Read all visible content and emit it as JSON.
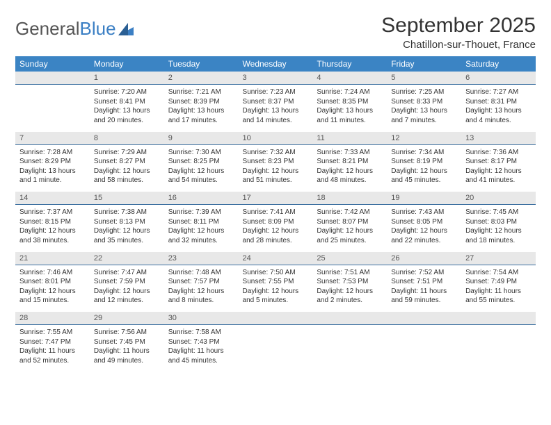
{
  "logo": {
    "text_a": "General",
    "text_b": "Blue"
  },
  "title": "September 2025",
  "location": "Chatillon-sur-Thouet, France",
  "colors": {
    "header_bg": "#3b84c4",
    "header_fg": "#ffffff",
    "daynum_bg": "#e8e8e8",
    "daynum_border": "#3b6fa0",
    "text": "#333333",
    "page_bg": "#ffffff"
  },
  "day_names": [
    "Sunday",
    "Monday",
    "Tuesday",
    "Wednesday",
    "Thursday",
    "Friday",
    "Saturday"
  ],
  "weeks": [
    {
      "nums": [
        "",
        "1",
        "2",
        "3",
        "4",
        "5",
        "6"
      ],
      "cells": [
        null,
        {
          "sunrise": "Sunrise: 7:20 AM",
          "sunset": "Sunset: 8:41 PM",
          "day1": "Daylight: 13 hours",
          "day2": "and 20 minutes."
        },
        {
          "sunrise": "Sunrise: 7:21 AM",
          "sunset": "Sunset: 8:39 PM",
          "day1": "Daylight: 13 hours",
          "day2": "and 17 minutes."
        },
        {
          "sunrise": "Sunrise: 7:23 AM",
          "sunset": "Sunset: 8:37 PM",
          "day1": "Daylight: 13 hours",
          "day2": "and 14 minutes."
        },
        {
          "sunrise": "Sunrise: 7:24 AM",
          "sunset": "Sunset: 8:35 PM",
          "day1": "Daylight: 13 hours",
          "day2": "and 11 minutes."
        },
        {
          "sunrise": "Sunrise: 7:25 AM",
          "sunset": "Sunset: 8:33 PM",
          "day1": "Daylight: 13 hours",
          "day2": "and 7 minutes."
        },
        {
          "sunrise": "Sunrise: 7:27 AM",
          "sunset": "Sunset: 8:31 PM",
          "day1": "Daylight: 13 hours",
          "day2": "and 4 minutes."
        }
      ]
    },
    {
      "nums": [
        "7",
        "8",
        "9",
        "10",
        "11",
        "12",
        "13"
      ],
      "cells": [
        {
          "sunrise": "Sunrise: 7:28 AM",
          "sunset": "Sunset: 8:29 PM",
          "day1": "Daylight: 13 hours",
          "day2": "and 1 minute."
        },
        {
          "sunrise": "Sunrise: 7:29 AM",
          "sunset": "Sunset: 8:27 PM",
          "day1": "Daylight: 12 hours",
          "day2": "and 58 minutes."
        },
        {
          "sunrise": "Sunrise: 7:30 AM",
          "sunset": "Sunset: 8:25 PM",
          "day1": "Daylight: 12 hours",
          "day2": "and 54 minutes."
        },
        {
          "sunrise": "Sunrise: 7:32 AM",
          "sunset": "Sunset: 8:23 PM",
          "day1": "Daylight: 12 hours",
          "day2": "and 51 minutes."
        },
        {
          "sunrise": "Sunrise: 7:33 AM",
          "sunset": "Sunset: 8:21 PM",
          "day1": "Daylight: 12 hours",
          "day2": "and 48 minutes."
        },
        {
          "sunrise": "Sunrise: 7:34 AM",
          "sunset": "Sunset: 8:19 PM",
          "day1": "Daylight: 12 hours",
          "day2": "and 45 minutes."
        },
        {
          "sunrise": "Sunrise: 7:36 AM",
          "sunset": "Sunset: 8:17 PM",
          "day1": "Daylight: 12 hours",
          "day2": "and 41 minutes."
        }
      ]
    },
    {
      "nums": [
        "14",
        "15",
        "16",
        "17",
        "18",
        "19",
        "20"
      ],
      "cells": [
        {
          "sunrise": "Sunrise: 7:37 AM",
          "sunset": "Sunset: 8:15 PM",
          "day1": "Daylight: 12 hours",
          "day2": "and 38 minutes."
        },
        {
          "sunrise": "Sunrise: 7:38 AM",
          "sunset": "Sunset: 8:13 PM",
          "day1": "Daylight: 12 hours",
          "day2": "and 35 minutes."
        },
        {
          "sunrise": "Sunrise: 7:39 AM",
          "sunset": "Sunset: 8:11 PM",
          "day1": "Daylight: 12 hours",
          "day2": "and 32 minutes."
        },
        {
          "sunrise": "Sunrise: 7:41 AM",
          "sunset": "Sunset: 8:09 PM",
          "day1": "Daylight: 12 hours",
          "day2": "and 28 minutes."
        },
        {
          "sunrise": "Sunrise: 7:42 AM",
          "sunset": "Sunset: 8:07 PM",
          "day1": "Daylight: 12 hours",
          "day2": "and 25 minutes."
        },
        {
          "sunrise": "Sunrise: 7:43 AM",
          "sunset": "Sunset: 8:05 PM",
          "day1": "Daylight: 12 hours",
          "day2": "and 22 minutes."
        },
        {
          "sunrise": "Sunrise: 7:45 AM",
          "sunset": "Sunset: 8:03 PM",
          "day1": "Daylight: 12 hours",
          "day2": "and 18 minutes."
        }
      ]
    },
    {
      "nums": [
        "21",
        "22",
        "23",
        "24",
        "25",
        "26",
        "27"
      ],
      "cells": [
        {
          "sunrise": "Sunrise: 7:46 AM",
          "sunset": "Sunset: 8:01 PM",
          "day1": "Daylight: 12 hours",
          "day2": "and 15 minutes."
        },
        {
          "sunrise": "Sunrise: 7:47 AM",
          "sunset": "Sunset: 7:59 PM",
          "day1": "Daylight: 12 hours",
          "day2": "and 12 minutes."
        },
        {
          "sunrise": "Sunrise: 7:48 AM",
          "sunset": "Sunset: 7:57 PM",
          "day1": "Daylight: 12 hours",
          "day2": "and 8 minutes."
        },
        {
          "sunrise": "Sunrise: 7:50 AM",
          "sunset": "Sunset: 7:55 PM",
          "day1": "Daylight: 12 hours",
          "day2": "and 5 minutes."
        },
        {
          "sunrise": "Sunrise: 7:51 AM",
          "sunset": "Sunset: 7:53 PM",
          "day1": "Daylight: 12 hours",
          "day2": "and 2 minutes."
        },
        {
          "sunrise": "Sunrise: 7:52 AM",
          "sunset": "Sunset: 7:51 PM",
          "day1": "Daylight: 11 hours",
          "day2": "and 59 minutes."
        },
        {
          "sunrise": "Sunrise: 7:54 AM",
          "sunset": "Sunset: 7:49 PM",
          "day1": "Daylight: 11 hours",
          "day2": "and 55 minutes."
        }
      ]
    },
    {
      "nums": [
        "28",
        "29",
        "30",
        "",
        "",
        "",
        ""
      ],
      "cells": [
        {
          "sunrise": "Sunrise: 7:55 AM",
          "sunset": "Sunset: 7:47 PM",
          "day1": "Daylight: 11 hours",
          "day2": "and 52 minutes."
        },
        {
          "sunrise": "Sunrise: 7:56 AM",
          "sunset": "Sunset: 7:45 PM",
          "day1": "Daylight: 11 hours",
          "day2": "and 49 minutes."
        },
        {
          "sunrise": "Sunrise: 7:58 AM",
          "sunset": "Sunset: 7:43 PM",
          "day1": "Daylight: 11 hours",
          "day2": "and 45 minutes."
        },
        null,
        null,
        null,
        null
      ]
    }
  ]
}
